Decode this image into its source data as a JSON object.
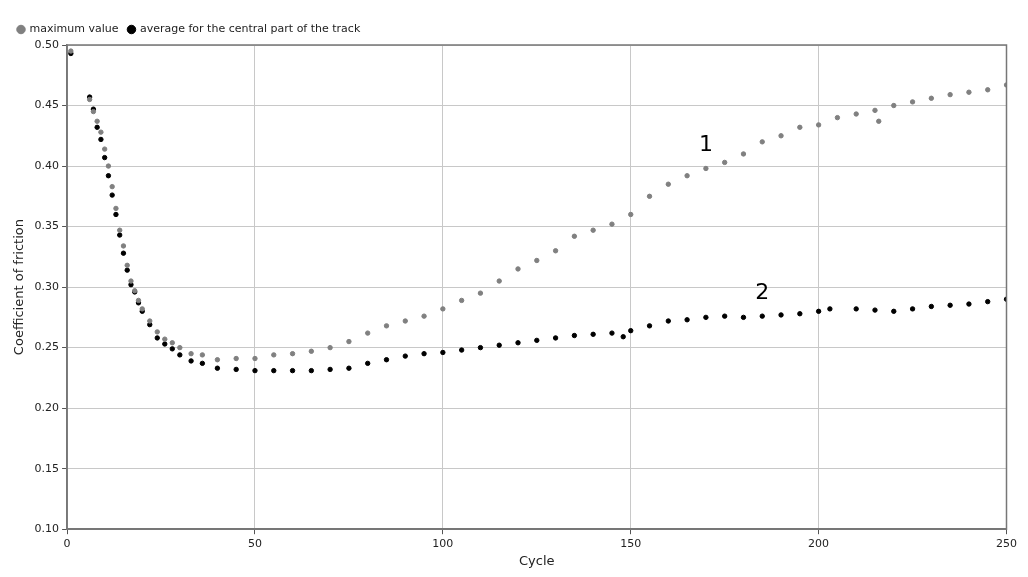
{
  "chart_data": {
    "type": "scatter",
    "xlabel": "Cycle",
    "ylabel": "Coefficient of friction",
    "xlim": [
      0,
      250
    ],
    "xticks": [
      0,
      50,
      100,
      150,
      200,
      250
    ],
    "ylim": [
      0.1,
      0.5
    ],
    "yticks": [
      {
        "value": 0.1,
        "label": "0.10"
      },
      {
        "value": 0.15,
        "label": "0.15"
      },
      {
        "value": 0.2,
        "label": "0.20"
      },
      {
        "value": 0.25,
        "label": "0.25"
      },
      {
        "value": 0.3,
        "label": "0.30"
      },
      {
        "value": 0.35,
        "label": "0.35"
      },
      {
        "value": 0.4,
        "label": "0.40"
      },
      {
        "value": 0.45,
        "label": "0.45"
      },
      {
        "value": 0.5,
        "label": "0.50"
      }
    ],
    "grid": true,
    "legend": "top left",
    "marker": "circle",
    "series": [
      {
        "name": "maximum value",
        "color": "#808080",
        "x": [
          1,
          6,
          7,
          8,
          9,
          10,
          11,
          12,
          13,
          14,
          15,
          16,
          17,
          18,
          19,
          20,
          22,
          24,
          26,
          28,
          30,
          33,
          36,
          40,
          45,
          50,
          55,
          60,
          65,
          70,
          75,
          80,
          85,
          90,
          95,
          100,
          105,
          110,
          115,
          120,
          125,
          130,
          135,
          140,
          145,
          150,
          155,
          160,
          165,
          170,
          175,
          180,
          185,
          190,
          195,
          200,
          205,
          210,
          215,
          216,
          220,
          225,
          230,
          235,
          240,
          245,
          250
        ],
        "values": [
          0.495,
          0.455,
          0.445,
          0.437,
          0.428,
          0.414,
          0.4,
          0.383,
          0.365,
          0.347,
          0.334,
          0.318,
          0.305,
          0.297,
          0.289,
          0.282,
          0.272,
          0.263,
          0.257,
          0.254,
          0.25,
          0.245,
          0.244,
          0.24,
          0.241,
          0.241,
          0.244,
          0.245,
          0.247,
          0.25,
          0.255,
          0.262,
          0.268,
          0.272,
          0.276,
          0.282,
          0.289,
          0.295,
          0.305,
          0.315,
          0.322,
          0.33,
          0.342,
          0.347,
          0.352,
          0.36,
          0.375,
          0.385,
          0.392,
          0.398,
          0.403,
          0.41,
          0.42,
          0.425,
          0.432,
          0.434,
          0.44,
          0.443,
          0.446,
          0.437,
          0.45,
          0.453,
          0.456,
          0.459,
          0.461,
          0.463,
          0.467
        ]
      },
      {
        "name": "average for the central part of the track",
        "color": "#000000",
        "x": [
          1,
          6,
          7,
          8,
          9,
          10,
          11,
          12,
          13,
          14,
          15,
          16,
          17,
          18,
          19,
          20,
          22,
          24,
          26,
          28,
          30,
          33,
          36,
          40,
          45,
          50,
          55,
          60,
          65,
          70,
          75,
          80,
          85,
          90,
          95,
          100,
          105,
          110,
          115,
          120,
          125,
          130,
          135,
          140,
          145,
          148,
          150,
          155,
          160,
          165,
          170,
          175,
          180,
          185,
          190,
          195,
          200,
          203,
          210,
          215,
          220,
          225,
          230,
          235,
          240,
          245,
          250
        ],
        "values": [
          0.493,
          0.457,
          0.447,
          0.432,
          0.422,
          0.407,
          0.392,
          0.376,
          0.36,
          0.343,
          0.328,
          0.314,
          0.302,
          0.296,
          0.287,
          0.28,
          0.269,
          0.258,
          0.253,
          0.249,
          0.244,
          0.239,
          0.237,
          0.233,
          0.232,
          0.231,
          0.231,
          0.231,
          0.231,
          0.232,
          0.233,
          0.237,
          0.24,
          0.243,
          0.245,
          0.246,
          0.248,
          0.25,
          0.252,
          0.254,
          0.256,
          0.258,
          0.26,
          0.261,
          0.262,
          0.259,
          0.264,
          0.268,
          0.272,
          0.273,
          0.275,
          0.276,
          0.275,
          0.276,
          0.277,
          0.278,
          0.28,
          0.282,
          0.282,
          0.281,
          0.28,
          0.282,
          0.284,
          0.285,
          0.286,
          0.288,
          0.29
        ]
      }
    ],
    "annotations": [
      "1",
      "2"
    ]
  }
}
